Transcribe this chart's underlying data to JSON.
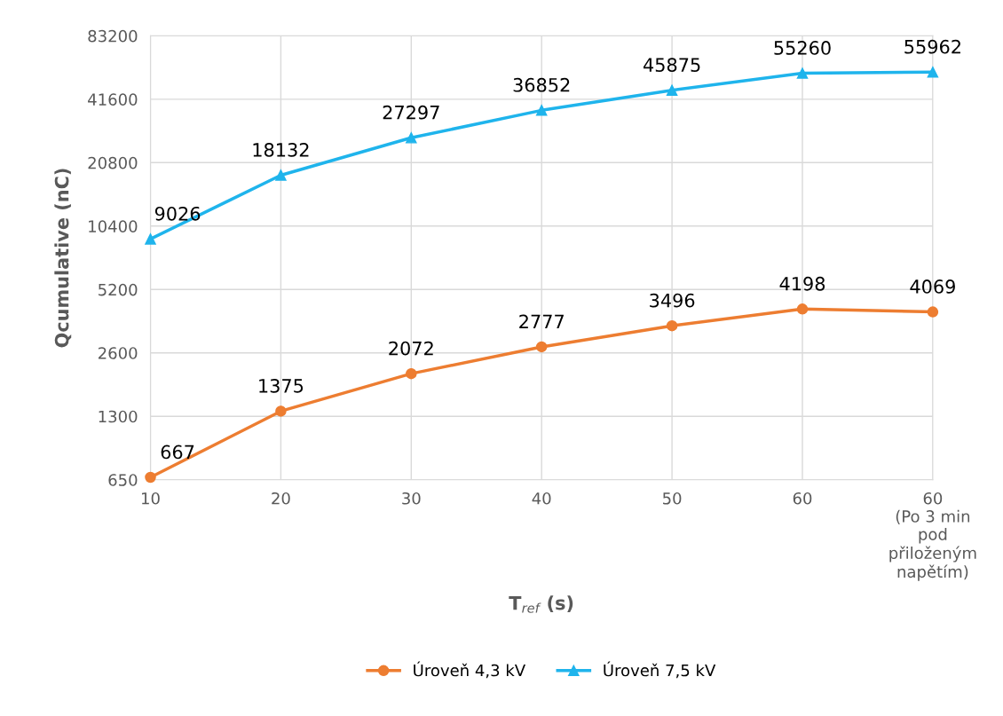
{
  "chart_data": {
    "type": "line",
    "xlabel": "T$_{ref}$ (s)",
    "ylabel": "Qcumulative (nC)",
    "categories": [
      "10",
      "20",
      "30",
      "40",
      "50",
      "60",
      "60\n(Po 3 min\npod\npřiloženým\nnapětím)"
    ],
    "series": [
      {
        "name": "Úroveň 4,3 kV",
        "color": "#ed7d31",
        "marker": "circle",
        "values": [
          667,
          1375,
          2072,
          2777,
          3496,
          4198,
          4069
        ]
      },
      {
        "name": "Úroveň 7,5 kV",
        "color": "#1fb4ec",
        "marker": "triangle",
        "values": [
          9026,
          18132,
          27297,
          36852,
          45875,
          55260,
          55962
        ]
      }
    ],
    "log": "y",
    "ylim": [
      650,
      83200
    ],
    "yticks": [
      650,
      1300,
      2600,
      5200,
      10400,
      20800,
      41600,
      83200
    ],
    "grid": true,
    "legend": "bottom",
    "data_labels": true
  }
}
